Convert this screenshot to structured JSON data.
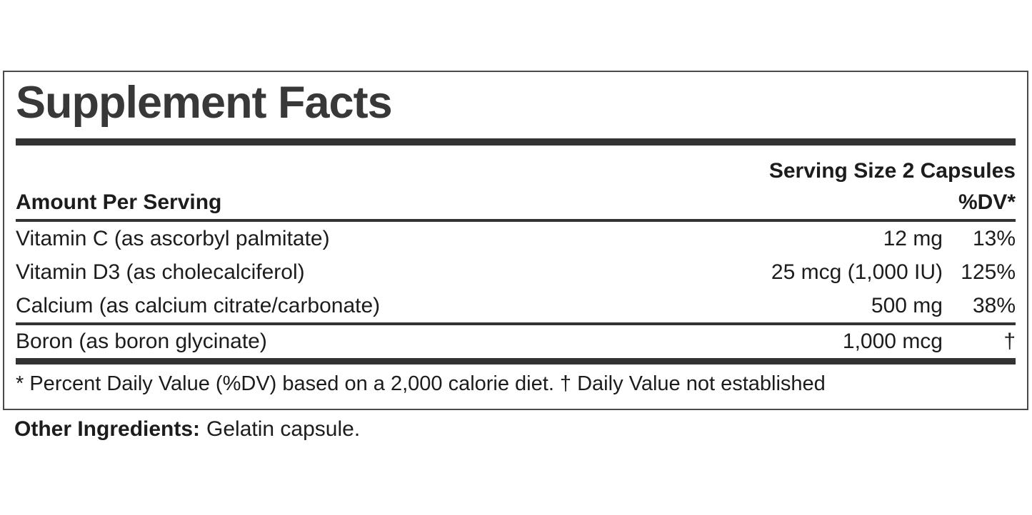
{
  "panel": {
    "title": "Supplement Facts",
    "serving_size": "Serving Size 2 Capsules",
    "columns": {
      "amount_header": "Amount Per Serving",
      "dv_header": "%DV*"
    },
    "rows": [
      {
        "name": "Vitamin C (as ascorbyl palmitate)",
        "amount": "12 mg",
        "dv": "13%"
      },
      {
        "name": "Vitamin D3 (as cholecalciferol)",
        "amount": "25 mcg (1,000 IU)",
        "dv": "125%"
      },
      {
        "name": "Calcium (as calcium citrate/carbonate)",
        "amount": "500 mg",
        "dv": "38%"
      },
      {
        "name": "Boron (as boron glycinate)",
        "amount": "1,000 mcg",
        "dv": "†"
      }
    ],
    "footnote": "* Percent Daily Value (%DV) based on a 2,000 calorie diet. † Daily Value not established",
    "other_ingredients": {
      "label": "Other Ingredients:",
      "value": "Gelatin capsule."
    },
    "colors": {
      "rule": "#333333",
      "border": "#4a4a4a",
      "text": "#1c1c1c",
      "title": "#383838",
      "background": "#ffffff"
    }
  }
}
